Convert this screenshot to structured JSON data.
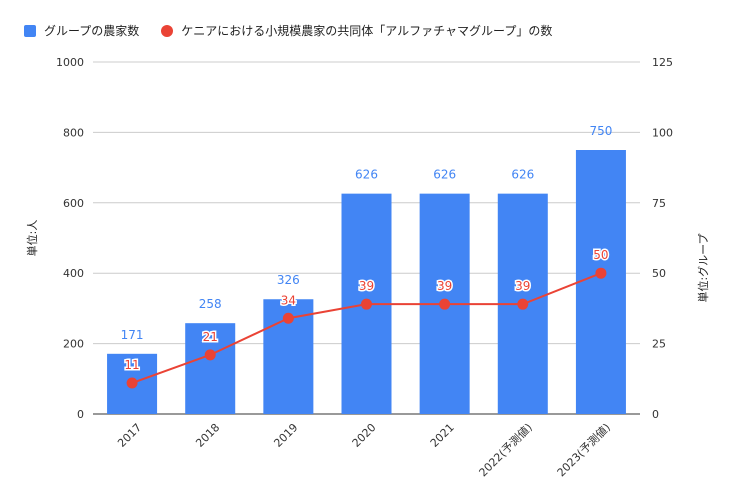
{
  "chart_data": {
    "type": "bar",
    "categories": [
      "2017",
      "2018",
      "2019",
      "2020",
      "2021",
      "2022(予測値)",
      "2023(予測値)"
    ],
    "series": [
      {
        "name": "グループの農家数",
        "type": "bar",
        "axis": "left",
        "values": [
          171,
          258,
          326,
          626,
          626,
          626,
          750
        ],
        "color": "#4285f4"
      },
      {
        "name": "ケニアにおける小規模農家の共同体「アルファチャマグループ」の数",
        "type": "line",
        "axis": "right",
        "values": [
          11,
          21,
          34,
          39,
          39,
          39,
          50
        ],
        "color": "#ea4335"
      }
    ],
    "ylabel_left": "単位:人",
    "ylabel_right": "単位:グループ",
    "ylim_left": [
      0,
      1000
    ],
    "ylim_right": [
      0,
      125
    ],
    "yticks_left": [
      0,
      200,
      400,
      600,
      800,
      1000
    ],
    "yticks_right": [
      0,
      25,
      50,
      75,
      100,
      125
    ],
    "grid": true,
    "legend_position": "top-left"
  }
}
